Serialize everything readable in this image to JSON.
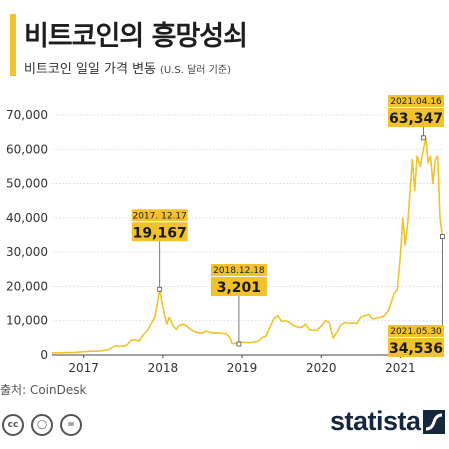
{
  "header": {
    "title": "비트코인의 흥망성쇠",
    "subtitle": "비트코인 일일 가격 변동",
    "subtitle_unit": "(U.S. 달러 기준)"
  },
  "footer": {
    "source": "출처: CoinDesk",
    "brand": "statista",
    "license_icons": [
      "cc-icon",
      "attribution-icon",
      "no-derivatives-icon"
    ]
  },
  "colors": {
    "accent": "#f2c12e",
    "line": "#f0c22b",
    "callout_bg": "#f2c12e",
    "brand": "#15273d"
  },
  "chart_data": {
    "type": "line",
    "title": "비트코인의 흥망성쇠",
    "subtitle": "비트코인 일일 가격 변동 (U.S. 달러 기준)",
    "xlabel": "",
    "ylabel": "",
    "xlim": [
      2016.6,
      2021.55
    ],
    "ylim": [
      0,
      70000
    ],
    "y_ticks": [
      0,
      10000,
      20000,
      30000,
      40000,
      50000,
      60000,
      70000
    ],
    "y_tick_labels": [
      "0",
      "10,000",
      "20,000",
      "30,000",
      "40,000",
      "50,000",
      "60,000",
      "70,000"
    ],
    "x_ticks": [
      2017,
      2018,
      2019,
      2020,
      2021
    ],
    "x_tick_labels": [
      "2017",
      "2018",
      "2019",
      "2020",
      "2021"
    ],
    "grid": true,
    "series": [
      {
        "x": [
          2016.6,
          2016.7,
          2016.8,
          2016.9,
          2017.0,
          2017.1,
          2017.2,
          2017.25,
          2017.3,
          2017.35,
          2017.4,
          2017.45,
          2017.5,
          2017.55,
          2017.6,
          2017.65,
          2017.7,
          2017.75,
          2017.8,
          2017.85,
          2017.9,
          2017.93,
          2017.96,
          2018.0,
          2018.03,
          2018.05,
          2018.08,
          2018.1,
          2018.13,
          2018.17,
          2018.2,
          2018.25,
          2018.3,
          2018.35,
          2018.4,
          2018.45,
          2018.5,
          2018.55,
          2018.6,
          2018.65,
          2018.7,
          2018.75,
          2018.8,
          2018.85,
          2018.87,
          2018.9,
          2018.96,
          2019.0,
          2019.1,
          2019.2,
          2019.25,
          2019.3,
          2019.35,
          2019.4,
          2019.45,
          2019.5,
          2019.55,
          2019.6,
          2019.65,
          2019.7,
          2019.75,
          2019.8,
          2019.85,
          2019.9,
          2019.95,
          2020.0,
          2020.05,
          2020.1,
          2020.15,
          2020.2,
          2020.25,
          2020.3,
          2020.35,
          2020.4,
          2020.45,
          2020.5,
          2020.55,
          2020.6,
          2020.65,
          2020.7,
          2020.75,
          2020.8,
          2020.85,
          2020.88,
          2020.92,
          2020.96,
          2021.0,
          2021.03,
          2021.06,
          2021.09,
          2021.12,
          2021.15,
          2021.18,
          2021.21,
          2021.25,
          2021.29,
          2021.32,
          2021.35,
          2021.38,
          2021.41,
          2021.44,
          2021.47,
          2021.5,
          2021.53
        ],
        "y": [
          600,
          650,
          700,
          750,
          950,
          1100,
          1200,
          1300,
          1450,
          2000,
          2700,
          2600,
          2500,
          3000,
          4300,
          4500,
          4000,
          5800,
          7000,
          9000,
          11000,
          15000,
          19167,
          14000,
          11000,
          9000,
          11000,
          10000,
          8500,
          7500,
          8500,
          9000,
          8500,
          7500,
          6800,
          6500,
          6400,
          7000,
          6500,
          6400,
          6500,
          6300,
          6200,
          5000,
          3500,
          3201,
          3800,
          3700,
          3600,
          4000,
          5000,
          5500,
          8000,
          10500,
          11500,
          9800,
          10000,
          9500,
          8500,
          8200,
          8000,
          9000,
          7400,
          7200,
          7200,
          8500,
          10000,
          9500,
          5000,
          6700,
          8800,
          9500,
          9200,
          9300,
          9200,
          11000,
          11500,
          11800,
          10500,
          10800,
          11000,
          11500,
          13000,
          15000,
          18000,
          19000,
          29000,
          40000,
          32000,
          38000,
          47000,
          57000,
          48000,
          58000,
          55000,
          60000,
          63347,
          56000,
          58000,
          50000,
          57000,
          58000,
          40000,
          34536
        ]
      }
    ],
    "annotations": [
      {
        "date": "2017. 12.17",
        "value": "19,167",
        "x": 2017.96,
        "y": 19167
      },
      {
        "date": "2018.12.18",
        "value": "3,201",
        "x": 2018.96,
        "y": 3201
      },
      {
        "date": "2021.04.16",
        "value": "63,347",
        "x": 2021.29,
        "y": 63347
      },
      {
        "date": "2021.05.30",
        "value": "34,536",
        "x": 2021.53,
        "y": 34536
      }
    ]
  }
}
